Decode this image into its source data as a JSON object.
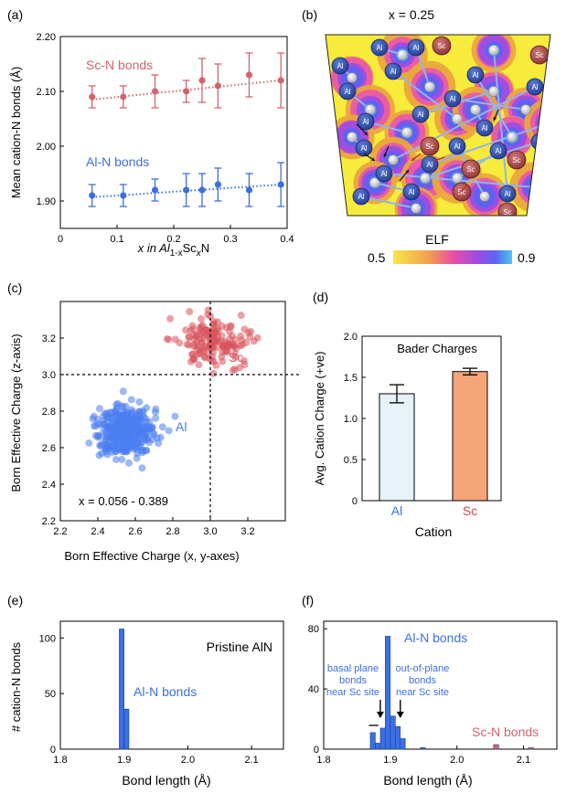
{
  "chart_data": [
    {
      "panel": "(a)",
      "type": "scatter",
      "ylabel": "Mean cation-N bonds (Å)",
      "xlabel_parts": [
        "x in Al",
        "1-x",
        "Sc",
        "x",
        "N"
      ],
      "xlim": [
        0,
        0.4
      ],
      "ylim": [
        1.85,
        2.2
      ],
      "xticks": [
        "0",
        "0.1",
        "0.2",
        "0.3",
        "0.4"
      ],
      "yticks": [
        "1.90",
        "2.00",
        "2.10",
        "2.20"
      ],
      "series": [
        {
          "name": "Sc-N bonds",
          "color": "#d2646e",
          "x": [
            0.056,
            0.111,
            0.167,
            0.222,
            0.25,
            0.278,
            0.333,
            0.389
          ],
          "y": [
            2.09,
            2.09,
            2.1,
            2.1,
            2.12,
            2.11,
            2.13,
            2.12
          ],
          "err": [
            0.02,
            0.02,
            0.03,
            0.02,
            0.04,
            0.04,
            0.04,
            0.05
          ],
          "fit": [
            2.085,
            2.12
          ]
        },
        {
          "name": "Al-N bonds",
          "color": "#3c6fe0",
          "x": [
            0.056,
            0.111,
            0.167,
            0.222,
            0.25,
            0.278,
            0.333,
            0.389
          ],
          "y": [
            1.91,
            1.91,
            1.92,
            1.92,
            1.92,
            1.93,
            1.92,
            1.93
          ],
          "err": [
            0.02,
            0.02,
            0.02,
            0.03,
            0.03,
            0.03,
            0.03,
            0.04
          ],
          "fit": [
            1.907,
            1.93
          ]
        }
      ]
    },
    {
      "panel": "(b)",
      "type": "heatmap",
      "title": "x = 0.25",
      "colorbar_label": "ELF",
      "colorbar_min": "0.5",
      "colorbar_max": "0.9",
      "atoms": [
        "Al",
        "Sc"
      ]
    },
    {
      "panel": "(c)",
      "type": "scatter",
      "xlabel": "Born Effective Charge (x, y-axes)",
      "ylabel": "Born Effective Charge (z-axis)",
      "xlim": [
        2.2,
        3.4
      ],
      "ylim": [
        2.2,
        3.4
      ],
      "xticks": [
        "2.2",
        "2.4",
        "2.6",
        "2.8",
        "3.0",
        "3.2"
      ],
      "yticks": [
        "2.2",
        "2.4",
        "2.6",
        "2.8",
        "3.0",
        "3.2"
      ],
      "annotation": "x = 0.056 - 0.389",
      "reference_lines": {
        "x": 3.0,
        "y": 3.0
      },
      "series": [
        {
          "name": "Al",
          "color": "#4a7ef0",
          "center": [
            2.55,
            2.69
          ],
          "spread": [
            0.075,
            0.075
          ],
          "n": 380
        },
        {
          "name": "Sc",
          "color": "#d8535c",
          "center": [
            3.02,
            3.18
          ],
          "spread": [
            0.1,
            0.07
          ],
          "n": 160
        }
      ]
    },
    {
      "panel": "(d)",
      "type": "bar",
      "title": "Bader Charges",
      "categories": [
        "Al",
        "Sc"
      ],
      "values": [
        1.3,
        1.57
      ],
      "errors": [
        0.11,
        0.04
      ],
      "colors": [
        "#e6f2f8",
        "#f6a579"
      ],
      "label_colors": [
        "#3c6fe0",
        "#d2464e"
      ],
      "xlabel": "Cation",
      "ylabel": "Avg. Cation Charge (+ve)",
      "ylim": [
        0,
        2.0
      ],
      "yticks": [
        "0",
        "0.5",
        "1.0",
        "1.5",
        "2.0"
      ]
    },
    {
      "panel": "(e)",
      "type": "bar",
      "title": "Pristine AlN",
      "series_label": "Al-N bonds",
      "xlabel": "Bond length (Å)",
      "ylabel": "# cation-N bonds",
      "xlim": [
        1.8,
        2.15
      ],
      "ylim": [
        0,
        115
      ],
      "xticks": [
        "1.8",
        "1.9",
        "2.0",
        "2.1"
      ],
      "yticks": [
        "0",
        "50",
        "100"
      ],
      "bin_width": 0.0075,
      "bins": [
        {
          "x": 1.8962,
          "count": 108
        },
        {
          "x": 1.9038,
          "count": 36
        }
      ]
    },
    {
      "panel": "(f)",
      "type": "bar",
      "xlabel": "Bond length (Å)",
      "xlim": [
        1.8,
        2.15
      ],
      "ylim": [
        0,
        85
      ],
      "xticks": [
        "1.8",
        "1.9",
        "2.0",
        "2.1"
      ],
      "yticks": [
        "0",
        "40",
        "80"
      ],
      "bin_width": 0.0075,
      "series": [
        {
          "name": "Al-N bonds",
          "color": "#3c6fe0",
          "bins": [
            {
              "x": 1.8737,
              "count": 11
            },
            {
              "x": 1.8812,
              "count": 4
            },
            {
              "x": 1.8888,
              "count": 14
            },
            {
              "x": 1.8962,
              "count": 75
            },
            {
              "x": 1.9038,
              "count": 22
            },
            {
              "x": 1.9113,
              "count": 15
            },
            {
              "x": 1.9187,
              "count": 7
            },
            {
              "x": 1.9488,
              "count": 1
            }
          ]
        },
        {
          "name": "Sc-N bonds",
          "color": "#d2646e",
          "bins": [
            {
              "x": 2.0588,
              "count": 3
            },
            {
              "x": 2.1112,
              "count": 1
            }
          ]
        }
      ],
      "annotations": [
        {
          "lines": [
            "basal plane",
            "bonds",
            "near Sc site"
          ],
          "target_x": 1.885
        },
        {
          "lines": [
            "out-of-plane",
            "bonds",
            "near Sc site"
          ],
          "target_x": 1.915
        }
      ]
    }
  ]
}
